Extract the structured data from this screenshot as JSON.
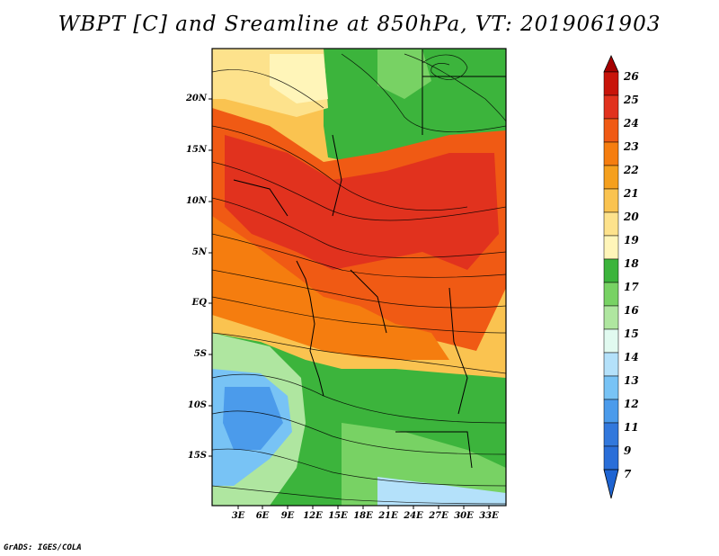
{
  "title": "WBPT [C] and Sreamline at 850hPa, VT: 2019061903",
  "y_ticks": [
    "20N",
    "15N",
    "10N",
    "5N",
    "EQ",
    "5S",
    "10S",
    "15S"
  ],
  "x_ticks": [
    "3E",
    "6E",
    "9E",
    "12E",
    "15E",
    "18E",
    "21E",
    "24E",
    "27E",
    "30E",
    "33E"
  ],
  "colorbar": {
    "labels": [
      "26",
      "25",
      "24",
      "23",
      "22",
      "21",
      "20",
      "19",
      "18",
      "17",
      "16",
      "15",
      "14",
      "13",
      "12",
      "11",
      "9",
      "7"
    ],
    "colors": [
      "#a50000",
      "#c8140a",
      "#e1321e",
      "#f05a14",
      "#f57d0f",
      "#f5a01e",
      "#fac350",
      "#fde28c",
      "#fff5b9",
      "#3cb43c",
      "#78d264",
      "#afe6a0",
      "#e1faf0",
      "#b4e1fa",
      "#78c3f5",
      "#4b9beb",
      "#3278dc",
      "#1e64d2"
    ]
  },
  "footer": "GrADS: IGES/COLA"
}
